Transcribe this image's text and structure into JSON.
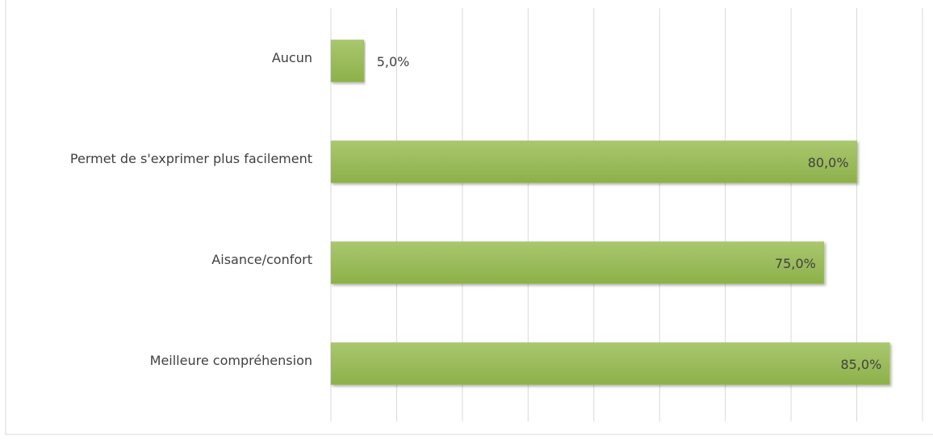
{
  "chart_data": {
    "type": "bar",
    "orientation": "horizontal",
    "categories": [
      "Aucun",
      "Permet de s'exprimer plus facilement",
      "Aisance/confort",
      "Meilleure compréhension"
    ],
    "values": [
      5,
      80,
      75,
      85
    ],
    "value_labels": [
      "5,0%",
      "80,0%",
      "75,0%",
      "85,0%"
    ],
    "color": "#9bbb59",
    "xlim": [
      0,
      90
    ],
    "xticks": [
      0,
      10,
      20,
      30,
      40,
      50,
      60,
      70,
      80,
      90
    ],
    "grid": true
  }
}
